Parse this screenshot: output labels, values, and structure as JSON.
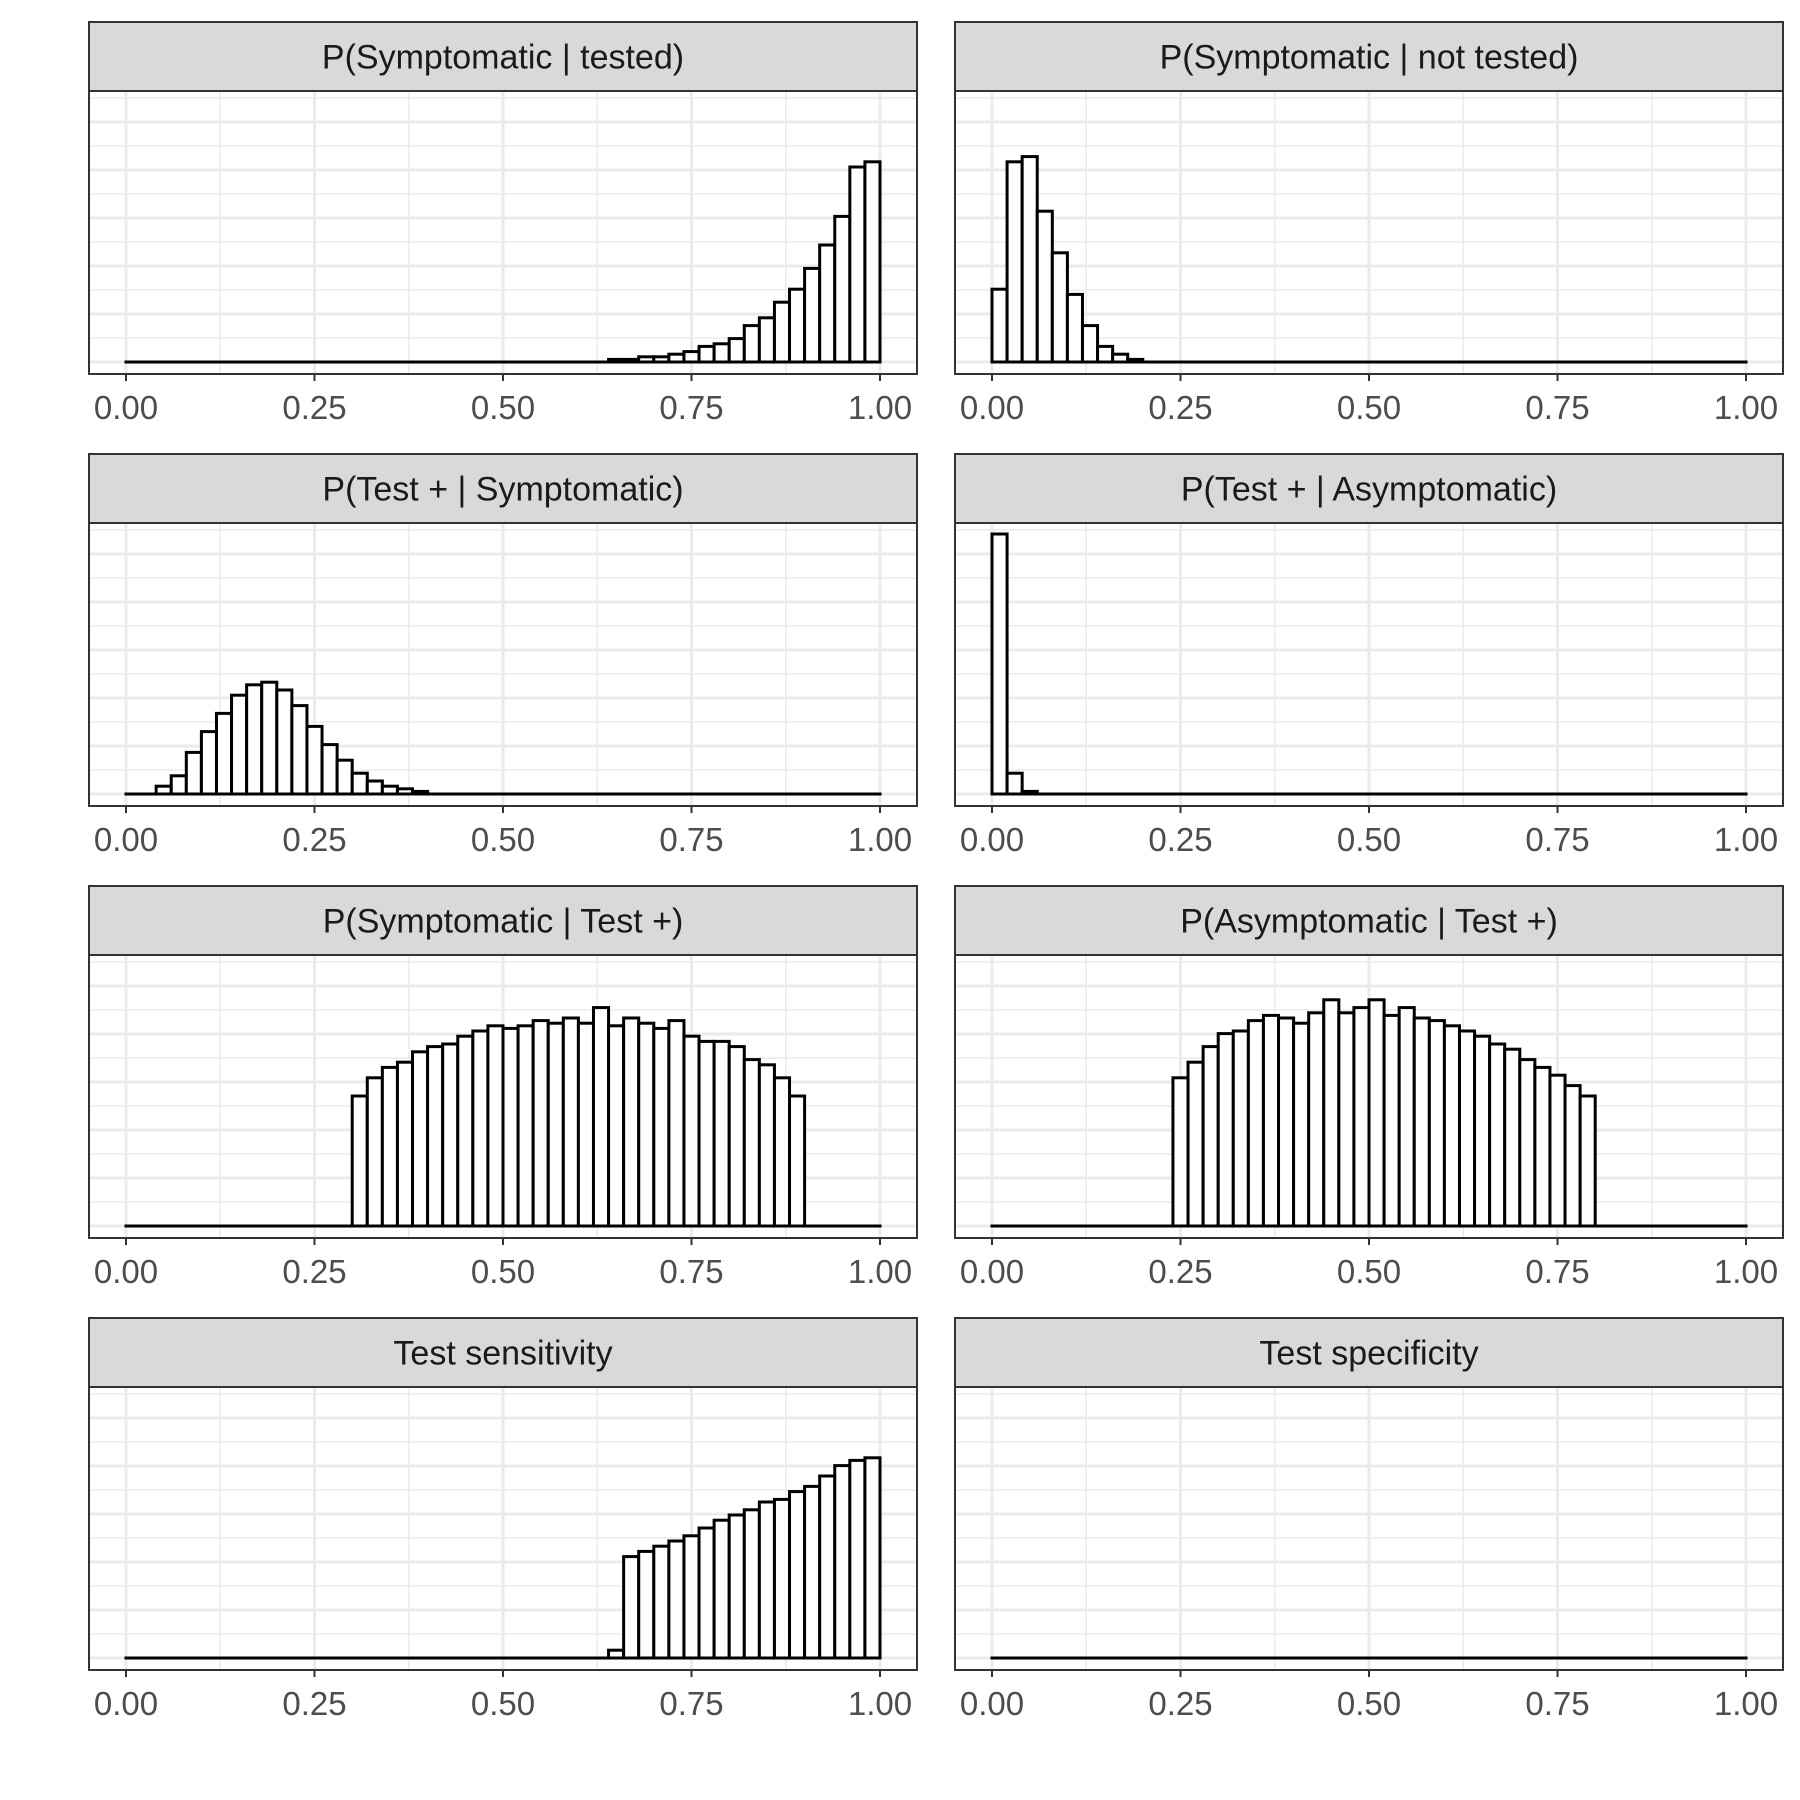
{
  "chart_data": [
    {
      "type": "bar",
      "title": "P(Symptomatic | tested)",
      "xlim": [
        0,
        1
      ],
      "x_ticks": [
        "0.00",
        "0.25",
        "0.50",
        "0.75",
        "1.00"
      ],
      "bins": 50,
      "values": [
        0,
        0,
        0,
        0,
        0,
        0,
        0,
        0,
        0,
        0,
        0,
        0,
        0,
        0,
        0,
        0,
        0,
        0,
        0,
        0,
        0,
        0,
        0,
        0,
        0,
        0,
        0,
        0,
        0,
        0,
        0,
        0,
        1,
        1,
        2,
        2,
        3,
        4,
        6,
        7,
        9,
        14,
        17,
        23,
        28,
        36,
        45,
        56,
        75,
        77
      ],
      "grid": true
    },
    {
      "type": "bar",
      "title": "P(Symptomatic | not tested)",
      "xlim": [
        0,
        1
      ],
      "x_ticks": [
        "0.00",
        "0.25",
        "0.50",
        "0.75",
        "1.00"
      ],
      "bins": 50,
      "values": [
        28,
        77,
        79,
        58,
        42,
        26,
        14,
        6,
        3,
        1,
        0,
        0,
        0,
        0,
        0,
        0,
        0,
        0,
        0,
        0,
        0,
        0,
        0,
        0,
        0,
        0,
        0,
        0,
        0,
        0,
        0,
        0,
        0,
        0,
        0,
        0,
        0,
        0,
        0,
        0,
        0,
        0,
        0,
        0,
        0,
        0,
        0,
        0,
        0,
        0
      ],
      "grid": true
    },
    {
      "type": "bar",
      "title": "P(Test + | Symptomatic)",
      "xlim": [
        0,
        1
      ],
      "x_ticks": [
        "0.00",
        "0.25",
        "0.50",
        "0.75",
        "1.00"
      ],
      "bins": 50,
      "values": [
        0,
        0,
        3,
        7,
        16,
        24,
        31,
        38,
        42,
        43,
        40,
        34,
        26,
        19,
        13,
        8,
        5,
        3,
        2,
        1,
        0,
        0,
        0,
        0,
        0,
        0,
        0,
        0,
        0,
        0,
        0,
        0,
        0,
        0,
        0,
        0,
        0,
        0,
        0,
        0,
        0,
        0,
        0,
        0,
        0,
        0,
        0,
        0,
        0,
        0
      ],
      "grid": true
    },
    {
      "type": "bar",
      "title": "P(Test + | Asymptomatic)",
      "xlim": [
        0,
        1
      ],
      "x_ticks": [
        "0.00",
        "0.25",
        "0.50",
        "0.75",
        "1.00"
      ],
      "bins": 50,
      "values": [
        100,
        8,
        1,
        0,
        0,
        0,
        0,
        0,
        0,
        0,
        0,
        0,
        0,
        0,
        0,
        0,
        0,
        0,
        0,
        0,
        0,
        0,
        0,
        0,
        0,
        0,
        0,
        0,
        0,
        0,
        0,
        0,
        0,
        0,
        0,
        0,
        0,
        0,
        0,
        0,
        0,
        0,
        0,
        0,
        0,
        0,
        0,
        0,
        0,
        0
      ],
      "grid": true
    },
    {
      "type": "bar",
      "title": "P(Symptomatic | Test +)",
      "xlim": [
        0,
        1
      ],
      "x_ticks": [
        "0.00",
        "0.25",
        "0.50",
        "0.75",
        "1.00"
      ],
      "bins": 50,
      "values": [
        0,
        0,
        0,
        0,
        0,
        0,
        0,
        0,
        0,
        0,
        0,
        0,
        0,
        0,
        0,
        50,
        57,
        61,
        63,
        67,
        69,
        70,
        73,
        75,
        77,
        76,
        77,
        79,
        78,
        80,
        78,
        84,
        77,
        80,
        78,
        76,
        79,
        73,
        71,
        71,
        69,
        64,
        62,
        57,
        50,
        0,
        0,
        0,
        0,
        0
      ],
      "grid": true
    },
    {
      "type": "bar",
      "title": "P(Asymptomatic | Test +)",
      "xlim": [
        0,
        1
      ],
      "x_ticks": [
        "0.00",
        "0.25",
        "0.50",
        "0.75",
        "1.00"
      ],
      "bins": 50,
      "values": [
        0,
        0,
        0,
        0,
        0,
        0,
        0,
        0,
        0,
        0,
        0,
        0,
        57,
        63,
        69,
        74,
        75,
        79,
        81,
        80,
        78,
        82,
        87,
        82,
        84,
        87,
        81,
        84,
        80,
        79,
        77,
        75,
        73,
        70,
        68,
        64,
        61,
        58,
        54,
        50,
        0,
        0,
        0,
        0,
        0,
        0,
        0,
        0,
        0,
        0
      ],
      "grid": true
    },
    {
      "type": "bar",
      "title": "Test sensitivity",
      "xlim": [
        0,
        1
      ],
      "x_ticks": [
        "0.00",
        "0.25",
        "0.50",
        "0.75",
        "1.00"
      ],
      "bins": 50,
      "values": [
        0,
        0,
        0,
        0,
        0,
        0,
        0,
        0,
        0,
        0,
        0,
        0,
        0,
        0,
        0,
        0,
        0,
        0,
        0,
        0,
        0,
        0,
        0,
        0,
        0,
        0,
        0,
        0,
        0,
        0,
        0,
        0,
        3,
        39,
        41,
        43,
        45,
        47,
        50,
        53,
        55,
        57,
        60,
        61,
        64,
        66,
        70,
        74,
        76,
        77
      ],
      "grid": true
    },
    {
      "type": "bar",
      "title": "Test specificity",
      "xlim": [
        0,
        1
      ],
      "x_ticks": [
        "0.00",
        "0.25",
        "0.50",
        "0.75",
        "1.00"
      ],
      "bins": 50,
      "values": [
        0,
        0,
        0,
        0,
        0,
        0,
        0,
        0,
        0,
        0,
        0,
        0,
        0,
        0,
        0,
        0,
        0,
        0,
        0,
        0,
        0,
        0,
        0,
        0,
        0,
        0,
        0,
        0,
        0,
        0,
        0,
        0,
        0,
        0,
        0,
        0,
        0,
        0,
        0,
        0,
        0,
        0,
        0,
        0,
        0,
        0,
        0,
        0,
        0,
        0
      ],
      "grid": true
    }
  ]
}
